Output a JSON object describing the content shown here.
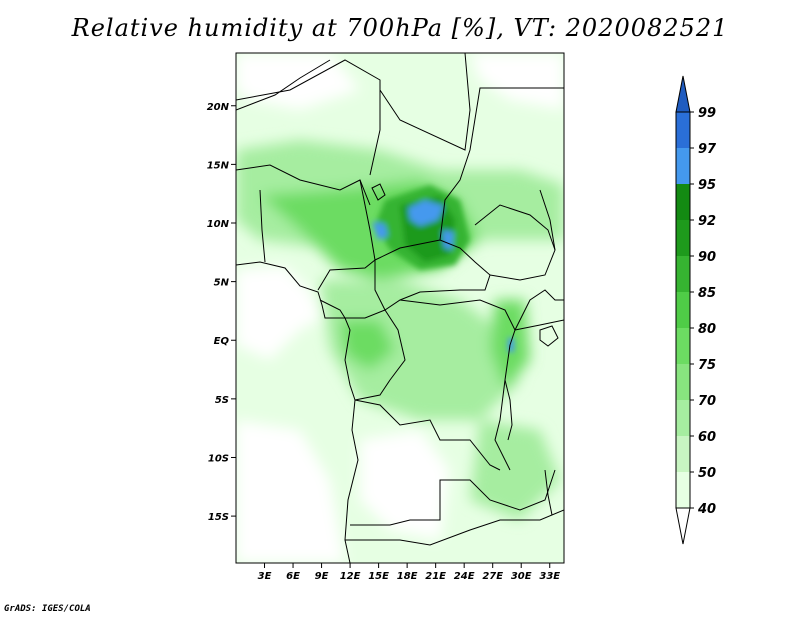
{
  "title": "Relative humidity at 700hPa [%], VT: 2020082521",
  "footer": "GrADS: IGES/COLA",
  "map": {
    "lon_range": [
      0,
      34.5
    ],
    "lat_range": [
      -19,
      24.5
    ],
    "x_ticks": [
      {
        "value": 3,
        "label": "3E"
      },
      {
        "value": 6,
        "label": "6E"
      },
      {
        "value": 9,
        "label": "9E"
      },
      {
        "value": 12,
        "label": "12E"
      },
      {
        "value": 15,
        "label": "15E"
      },
      {
        "value": 18,
        "label": "18E"
      },
      {
        "value": 21,
        "label": "21E"
      },
      {
        "value": 24,
        "label": "24E"
      },
      {
        "value": 27,
        "label": "27E"
      },
      {
        "value": 30,
        "label": "30E"
      },
      {
        "value": 33,
        "label": "33E"
      }
    ],
    "y_ticks": [
      {
        "value": 20,
        "label": "20N"
      },
      {
        "value": 15,
        "label": "15N"
      },
      {
        "value": 10,
        "label": "10N"
      },
      {
        "value": 5,
        "label": "5N"
      },
      {
        "value": 0,
        "label": "EQ"
      },
      {
        "value": -5,
        "label": "5S"
      },
      {
        "value": -10,
        "label": "10S"
      },
      {
        "value": -15,
        "label": "15S"
      }
    ]
  },
  "colorbar": {
    "levels": [
      {
        "label": "40",
        "color": "#ffffff"
      },
      {
        "label": "50",
        "color": "#e6ffe3"
      },
      {
        "label": "60",
        "color": "#c8f5c2"
      },
      {
        "label": "70",
        "color": "#a6eda0"
      },
      {
        "label": "75",
        "color": "#88e47f"
      },
      {
        "label": "80",
        "color": "#6cdc62"
      },
      {
        "label": "85",
        "color": "#4fcc47"
      },
      {
        "label": "90",
        "color": "#36b431"
      },
      {
        "label": "92",
        "color": "#1e9a1c"
      },
      {
        "label": "95",
        "color": "#138a12"
      },
      {
        "label": "97",
        "color": "#4499ee"
      },
      {
        "label": "99",
        "color": "#2a6fd8"
      }
    ],
    "top_color": "#1f5cc0",
    "bottom_color": "#ffffff"
  },
  "colors": {
    "frame": "#000000",
    "border": "#000000",
    "land_light": "#e6ffe3"
  }
}
